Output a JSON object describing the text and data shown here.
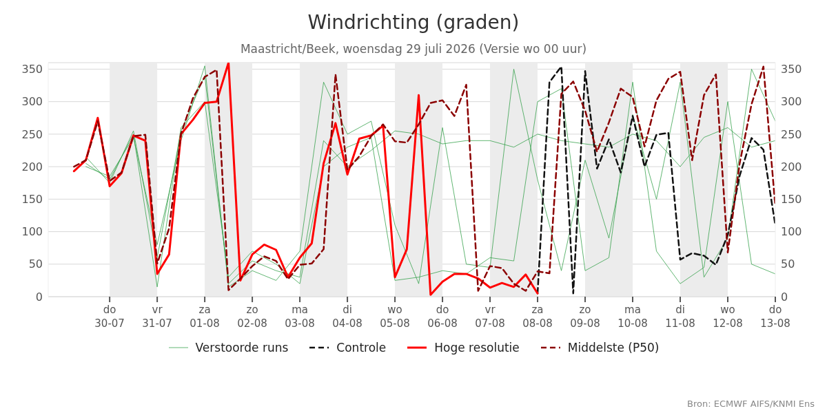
{
  "chart_data": {
    "type": "line",
    "title": "Windrichting (graden)",
    "subtitle": "Maastricht/Beek, woensdag 29 juli 2026 (Versie wo 00 uur)",
    "x": [
      "2026-07-29T06:00",
      "2026-07-29T12:00",
      "2026-07-29T18:00",
      "2026-07-30T00:00",
      "2026-07-30T06:00",
      "2026-07-30T12:00",
      "2026-07-30T18:00",
      "2026-07-31T00:00",
      "2026-07-31T06:00",
      "2026-07-31T12:00",
      "2026-07-31T18:00",
      "2026-08-01T00:00",
      "2026-08-01T06:00",
      "2026-08-01T12:00",
      "2026-08-01T18:00",
      "2026-08-02T00:00",
      "2026-08-02T06:00",
      "2026-08-02T12:00",
      "2026-08-02T18:00",
      "2026-08-03T00:00",
      "2026-08-03T06:00",
      "2026-08-03T12:00",
      "2026-08-03T18:00",
      "2026-08-04T00:00",
      "2026-08-04T06:00",
      "2026-08-04T12:00",
      "2026-08-04T18:00",
      "2026-08-05T00:00",
      "2026-08-05T06:00",
      "2026-08-05T12:00",
      "2026-08-05T18:00",
      "2026-08-06T00:00",
      "2026-08-06T06:00",
      "2026-08-06T12:00",
      "2026-08-06T18:00",
      "2026-08-07T00:00",
      "2026-08-07T06:00",
      "2026-08-07T12:00",
      "2026-08-07T18:00",
      "2026-08-08T00:00",
      "2026-08-08T06:00",
      "2026-08-08T12:00",
      "2026-08-08T18:00",
      "2026-08-09T00:00",
      "2026-08-09T06:00",
      "2026-08-09T12:00",
      "2026-08-09T18:00",
      "2026-08-10T00:00",
      "2026-08-10T06:00",
      "2026-08-10T12:00",
      "2026-08-10T18:00",
      "2026-08-11T00:00",
      "2026-08-11T06:00",
      "2026-08-11T12:00",
      "2026-08-11T18:00",
      "2026-08-12T00:00",
      "2026-08-12T06:00",
      "2026-08-12T12:00",
      "2026-08-12T18:00",
      "2026-08-13T00:00"
    ],
    "series": [
      {
        "name": "Verstoorde runs",
        "color": "#2e9e44",
        "x": [
          "2026-07-29T12:00",
          "2026-07-30T00:00",
          "2026-07-30T12:00",
          "2026-07-31T00:00",
          "2026-07-31T12:00",
          "2026-08-01T00:00",
          "2026-08-01T12:00",
          "2026-08-02T00:00",
          "2026-08-02T12:00",
          "2026-08-03T00:00",
          "2026-08-03T12:00",
          "2026-08-04T00:00",
          "2026-08-04T12:00",
          "2026-08-05T00:00",
          "2026-08-05T12:00",
          "2026-08-06T00:00",
          "2026-08-06T12:00",
          "2026-08-07T00:00",
          "2026-08-07T12:00",
          "2026-08-08T00:00",
          "2026-08-08T12:00",
          "2026-08-09T00:00",
          "2026-08-09T12:00",
          "2026-08-10T00:00",
          "2026-08-10T12:00",
          "2026-08-11T00:00",
          "2026-08-11T12:00",
          "2026-08-12T00:00",
          "2026-08-12T12:00",
          "2026-08-13T00:00"
        ],
        "values": [
          215,
          175,
          255,
          60,
          255,
          340,
          20,
          55,
          40,
          30,
          240,
          200,
          225,
          255,
          250,
          235,
          240,
          240,
          230,
          250,
          240,
          235,
          230,
          250,
          240,
          200,
          245,
          260,
          230,
          240
        ]
      },
      {
        "color": "#2e9e44",
        "x": [
          "2026-07-29T12:00",
          "2026-07-30T00:00",
          "2026-07-30T12:00",
          "2026-07-31T00:00",
          "2026-07-31T12:00",
          "2026-08-01T00:00",
          "2026-08-01T12:00",
          "2026-08-02T00:00",
          "2026-08-02T12:00",
          "2026-08-03T00:00",
          "2026-08-03T12:00",
          "2026-08-04T00:00",
          "2026-08-04T12:00",
          "2026-08-05T00:00",
          "2026-08-05T12:00",
          "2026-08-06T00:00",
          "2026-08-06T12:00",
          "2026-08-07T00:00",
          "2026-08-07T12:00",
          "2026-08-08T00:00",
          "2026-08-08T12:00",
          "2026-08-09T00:00",
          "2026-08-09T12:00",
          "2026-08-10T00:00",
          "2026-08-10T12:00",
          "2026-08-11T00:00",
          "2026-08-11T12:00",
          "2026-08-12T00:00",
          "2026-08-12T12:00",
          "2026-08-13T00:00"
        ],
        "values": [
          205,
          180,
          250,
          15,
          260,
          300,
          30,
          70,
          50,
          20,
          200,
          230,
          245,
          25,
          30,
          40,
          35,
          60,
          55,
          300,
          320,
          40,
          60,
          330,
          70,
          20,
          45,
          300,
          50,
          35
        ]
      },
      {
        "color": "#2e9e44",
        "x": [
          "2026-07-29T12:00",
          "2026-07-30T00:00",
          "2026-07-30T12:00",
          "2026-07-31T00:00",
          "2026-07-31T12:00",
          "2026-08-01T00:00",
          "2026-08-01T12:00",
          "2026-08-02T00:00",
          "2026-08-02T12:00",
          "2026-08-03T00:00",
          "2026-08-03T12:00",
          "2026-08-04T00:00",
          "2026-08-04T12:00",
          "2026-08-05T00:00",
          "2026-08-05T12:00",
          "2026-08-06T00:00",
          "2026-08-06T12:00",
          "2026-08-07T00:00",
          "2026-08-07T12:00",
          "2026-08-08T00:00",
          "2026-08-08T12:00",
          "2026-08-09T00:00",
          "2026-08-09T12:00",
          "2026-08-10T00:00",
          "2026-08-10T12:00",
          "2026-08-11T00:00",
          "2026-08-11T12:00",
          "2026-08-12T00:00",
          "2026-08-12T12:00",
          "2026-08-13T00:00"
        ],
        "values": [
          200,
          185,
          245,
          80,
          240,
          355,
          15,
          40,
          25,
          70,
          330,
          250,
          270,
          110,
          20,
          260,
          50,
          45,
          350,
          180,
          40,
          210,
          90,
          280,
          150,
          330,
          30,
          90,
          350,
          270
        ]
      },
      {
        "name": "Controle",
        "color": "#111111",
        "line_style": "dashed",
        "values": [
          null,
          null,
          null,
          null,
          null,
          null,
          null,
          null,
          null,
          null,
          null,
          null,
          null,
          null,
          null,
          null,
          null,
          null,
          null,
          null,
          null,
          null,
          null,
          null,
          null,
          null,
          null,
          null,
          null,
          null,
          null,
          null,
          null,
          null,
          null,
          null,
          null,
          null,
          null,
          5,
          330,
          354,
          5,
          347,
          197,
          242,
          191,
          278,
          200,
          249,
          252,
          57,
          67,
          63,
          49,
          95,
          186,
          244,
          226,
          110
        ]
      },
      {
        "name": "Hoge resolutie",
        "color": "#ff0000",
        "line_style": "solid",
        "values": [
          193,
          210,
          275,
          170,
          190,
          248,
          240,
          35,
          65,
          250,
          272,
          298,
          300,
          360,
          25,
          65,
          80,
          72,
          30,
          60,
          82,
          205,
          267,
          188,
          243,
          248,
          263,
          30,
          73,
          310,
          3,
          23,
          35,
          35,
          28,
          14,
          21,
          15,
          34,
          5,
          null,
          null,
          null,
          null,
          null,
          null,
          null,
          null,
          null,
          null,
          null,
          null,
          null,
          null,
          null,
          null,
          null,
          null,
          null,
          null
        ]
      },
      {
        "name": "Middelste (P50)",
        "color": "#8b0000",
        "line_style": "dashed",
        "values": [
          200,
          210,
          270,
          178,
          191,
          247,
          249,
          51,
          105,
          250,
          305,
          338,
          349,
          10,
          28,
          47,
          62,
          55,
          27,
          49,
          51,
          73,
          342,
          195,
          216,
          247,
          265,
          239,
          237,
          265,
          298,
          302,
          278,
          326,
          9,
          47,
          44,
          20,
          9,
          39,
          36,
          312,
          331,
          286,
          223,
          268,
          320,
          307,
          231,
          302,
          335,
          346,
          210,
          310,
          342,
          68,
          205,
          296,
          354,
          139
        ]
      }
    ],
    "xlim": [
      "2026-07-28T17:00",
      "2026-08-13T00:00"
    ],
    "xticks": [
      {
        "value": "2026-07-30",
        "label": "do 30-07"
      },
      {
        "value": "2026-07-31",
        "label": "vr 31-07"
      },
      {
        "value": "2026-08-01",
        "label": "za 01-08"
      },
      {
        "value": "2026-08-02",
        "label": "zo 02-08"
      },
      {
        "value": "2026-08-03",
        "label": "ma 03-08"
      },
      {
        "value": "2026-08-04",
        "label": "di 04-08"
      },
      {
        "value": "2026-08-05",
        "label": "wo 05-08"
      },
      {
        "value": "2026-08-06",
        "label": "do 06-08"
      },
      {
        "value": "2026-08-07",
        "label": "vr 07-08"
      },
      {
        "value": "2026-08-08",
        "label": "za 08-08"
      },
      {
        "value": "2026-08-09",
        "label": "zo 09-08"
      },
      {
        "value": "2026-08-10",
        "label": "ma 10-08"
      },
      {
        "value": "2026-08-11",
        "label": "di 11-08"
      },
      {
        "value": "2026-08-12",
        "label": "wo 12-08"
      },
      {
        "value": "2026-08-13",
        "label": "do 13-08"
      }
    ],
    "ylim": [
      0,
      360
    ],
    "yticks": [
      0,
      50,
      100,
      150,
      200,
      250,
      300,
      350
    ],
    "y2lim": [
      0,
      360
    ],
    "y2ticks": [
      0,
      50,
      100,
      150,
      200,
      250,
      300,
      350
    ],
    "bands": [
      {
        "axis": "x",
        "from": "2026-07-30",
        "to": "2026-07-31",
        "color": "#ececec"
      },
      {
        "axis": "x",
        "from": "2026-08-01",
        "to": "2026-08-02",
        "color": "#ececec"
      },
      {
        "axis": "x",
        "from": "2026-08-03",
        "to": "2026-08-04",
        "color": "#ececec"
      },
      {
        "axis": "x",
        "from": "2026-08-05",
        "to": "2026-08-06",
        "color": "#ececec"
      },
      {
        "axis": "x",
        "from": "2026-08-07",
        "to": "2026-08-08",
        "color": "#ececec"
      },
      {
        "axis": "x",
        "from": "2026-08-09",
        "to": "2026-08-10",
        "color": "#ececec"
      },
      {
        "axis": "x",
        "from": "2026-08-11",
        "to": "2026-08-12",
        "color": "#ececec"
      }
    ],
    "grid": "y",
    "legend": "bottom",
    "marker": "none",
    "annotations": [
      "Bron: ECMWF AIFS/KNMI Ens"
    ]
  }
}
